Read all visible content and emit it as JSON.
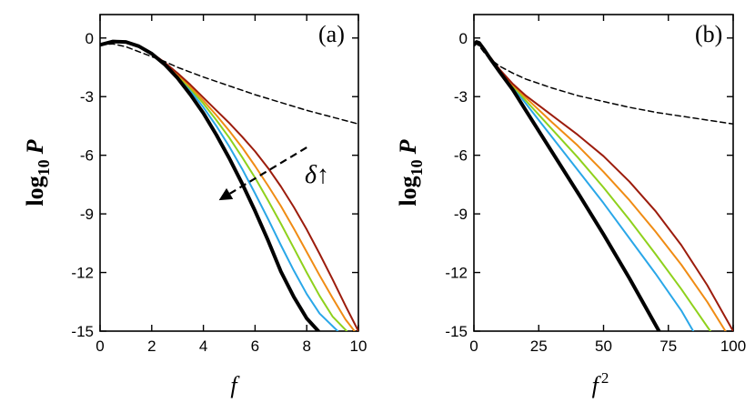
{
  "chart_data": [
    {
      "type": "line",
      "panel_label": "(a)",
      "ylabel_main": "log",
      "ylabel_sub": "10",
      "ylabel_var": "P",
      "xlabel": "f",
      "xlabel_sup": "",
      "xlim": [
        0,
        10
      ],
      "ylim": [
        -15,
        1.2
      ],
      "xticks": [
        0,
        2,
        4,
        6,
        8,
        10
      ],
      "xtick_labels": [
        "0",
        "2",
        "4",
        "6",
        "8",
        "10"
      ],
      "yticks": [
        0,
        -3,
        -6,
        -9,
        -12,
        -15
      ],
      "ytick_labels": [
        "0",
        "-3",
        "-6",
        "-9",
        "-12",
        "-15"
      ],
      "annotation": {
        "text": "δ↑",
        "arrow_from": [
          8.0,
          -5.6
        ],
        "arrow_to": [
          4.6,
          -8.3
        ]
      },
      "series": [
        {
          "color": "#000000",
          "width": 4,
          "dashed": false,
          "x": [
            0,
            0.5,
            1,
            1.5,
            2,
            2.5,
            3,
            3.5,
            4,
            4.5,
            5,
            5.5,
            6,
            6.5,
            7,
            7.5,
            8,
            8.45
          ],
          "y": [
            -0.35,
            -0.18,
            -0.2,
            -0.42,
            -0.8,
            -1.35,
            -2.05,
            -2.9,
            -3.85,
            -4.95,
            -6.15,
            -7.45,
            -8.85,
            -10.35,
            -11.95,
            -13.25,
            -14.35,
            -15.0
          ]
        },
        {
          "color": "#2aa7e8",
          "width": 2,
          "dashed": false,
          "x": [
            0,
            0.5,
            1,
            1.5,
            2,
            2.5,
            3,
            3.5,
            4,
            4.5,
            5,
            5.5,
            6,
            6.5,
            7,
            7.5,
            8,
            8.5,
            9.2
          ],
          "y": [
            -0.35,
            -0.18,
            -0.2,
            -0.42,
            -0.78,
            -1.3,
            -1.95,
            -2.7,
            -3.55,
            -4.5,
            -5.55,
            -6.7,
            -7.95,
            -9.25,
            -10.6,
            -11.9,
            -13.1,
            -14.1,
            -15.0
          ]
        },
        {
          "color": "#8fd11c",
          "width": 2,
          "dashed": false,
          "x": [
            0,
            0.5,
            1,
            1.5,
            2,
            2.5,
            3,
            3.5,
            4,
            4.5,
            5,
            5.5,
            6,
            6.5,
            7,
            7.5,
            8,
            8.5,
            9,
            9.55
          ],
          "y": [
            -0.35,
            -0.18,
            -0.2,
            -0.42,
            -0.78,
            -1.28,
            -1.9,
            -2.6,
            -3.35,
            -4.2,
            -5.1,
            -6.1,
            -7.15,
            -8.3,
            -9.5,
            -10.75,
            -12.0,
            -13.2,
            -14.25,
            -15.0
          ]
        },
        {
          "color": "#f08c14",
          "width": 2,
          "dashed": false,
          "x": [
            0,
            0.5,
            1,
            1.5,
            2,
            2.5,
            3,
            3.5,
            4,
            4.5,
            5,
            5.5,
            6,
            6.5,
            7,
            7.5,
            8,
            8.5,
            9,
            9.5,
            9.85
          ],
          "y": [
            -0.35,
            -0.18,
            -0.2,
            -0.42,
            -0.78,
            -1.27,
            -1.85,
            -2.5,
            -3.2,
            -3.95,
            -4.75,
            -5.6,
            -6.55,
            -7.55,
            -8.6,
            -9.75,
            -10.95,
            -12.15,
            -13.3,
            -14.4,
            -15.0
          ]
        },
        {
          "color": "#9c1c0c",
          "width": 2,
          "dashed": false,
          "x": [
            0,
            0.5,
            1,
            1.5,
            2,
            2.5,
            3,
            3.5,
            4,
            4.5,
            5,
            5.5,
            6,
            6.5,
            7,
            7.5,
            8,
            8.5,
            9,
            9.5,
            10
          ],
          "y": [
            -0.35,
            -0.18,
            -0.2,
            -0.42,
            -0.78,
            -1.25,
            -1.8,
            -2.4,
            -3.05,
            -3.7,
            -4.35,
            -5.05,
            -5.8,
            -6.65,
            -7.6,
            -8.65,
            -9.8,
            -11.05,
            -12.35,
            -13.7,
            -15.0
          ]
        },
        {
          "color": "#000000",
          "width": 1.5,
          "dashed": true,
          "x": [
            0,
            0.5,
            1,
            1.5,
            2,
            2.5,
            3,
            4,
            5,
            6,
            7,
            8,
            9,
            10
          ],
          "y": [
            -0.35,
            -0.3,
            -0.45,
            -0.7,
            -0.95,
            -1.2,
            -1.5,
            -2.0,
            -2.45,
            -2.9,
            -3.3,
            -3.7,
            -4.05,
            -4.4
          ]
        }
      ]
    },
    {
      "type": "line",
      "panel_label": "(b)",
      "ylabel_main": "log",
      "ylabel_sub": "10",
      "ylabel_var": "P",
      "xlabel": "f",
      "xlabel_sup": "2",
      "xlim": [
        0,
        100
      ],
      "ylim": [
        -15,
        1.2
      ],
      "xticks": [
        0,
        25,
        50,
        75,
        100
      ],
      "xtick_labels": [
        "0",
        "25",
        "50",
        "75",
        "100"
      ],
      "yticks": [
        0,
        -3,
        -6,
        -9,
        -12,
        -15
      ],
      "ytick_labels": [
        "0",
        "-3",
        "-6",
        "-9",
        "-12",
        "-15"
      ],
      "series": [
        {
          "color": "#000000",
          "width": 4,
          "dashed": false,
          "x": [
            0,
            1,
            2,
            4,
            6,
            10,
            15,
            20,
            30,
            40,
            50,
            60,
            71.4
          ],
          "y": [
            -0.35,
            -0.2,
            -0.25,
            -0.6,
            -1.0,
            -1.75,
            -2.65,
            -3.7,
            -5.8,
            -7.9,
            -10.05,
            -12.3,
            -15.0
          ]
        },
        {
          "color": "#2aa7e8",
          "width": 2,
          "dashed": false,
          "x": [
            0,
            1,
            2,
            4,
            6,
            10,
            15,
            20,
            30,
            40,
            50,
            60,
            70,
            80,
            84.6
          ],
          "y": [
            -0.35,
            -0.2,
            -0.25,
            -0.58,
            -0.95,
            -1.7,
            -2.5,
            -3.35,
            -5.05,
            -6.75,
            -8.45,
            -10.25,
            -12.05,
            -13.95,
            -15.0
          ]
        },
        {
          "color": "#8fd11c",
          "width": 2,
          "dashed": false,
          "x": [
            0,
            1,
            2,
            4,
            6,
            10,
            15,
            20,
            30,
            40,
            50,
            60,
            70,
            80,
            91.2
          ],
          "y": [
            -0.35,
            -0.2,
            -0.25,
            -0.58,
            -0.95,
            -1.68,
            -2.45,
            -3.2,
            -4.65,
            -6.1,
            -7.65,
            -9.3,
            -11.05,
            -12.85,
            -15.0
          ]
        },
        {
          "color": "#f08c14",
          "width": 2,
          "dashed": false,
          "x": [
            0,
            1,
            2,
            4,
            6,
            10,
            15,
            20,
            30,
            40,
            50,
            60,
            70,
            80,
            90,
            97
          ],
          "y": [
            -0.35,
            -0.2,
            -0.25,
            -0.58,
            -0.93,
            -1.65,
            -2.4,
            -3.05,
            -4.3,
            -5.5,
            -6.85,
            -8.3,
            -9.9,
            -11.6,
            -13.5,
            -15.0
          ]
        },
        {
          "color": "#9c1c0c",
          "width": 2,
          "dashed": false,
          "x": [
            0,
            1,
            2,
            4,
            6,
            10,
            15,
            20,
            30,
            40,
            50,
            60,
            70,
            80,
            90,
            100
          ],
          "y": [
            -0.35,
            -0.2,
            -0.25,
            -0.58,
            -0.93,
            -1.62,
            -2.35,
            -2.95,
            -3.95,
            -4.95,
            -6.05,
            -7.35,
            -8.85,
            -10.6,
            -12.65,
            -15.0
          ]
        },
        {
          "color": "#000000",
          "width": 1.5,
          "dashed": true,
          "x": [
            0,
            1,
            2,
            4,
            6,
            10,
            15,
            20,
            30,
            40,
            50,
            60,
            70,
            80,
            90,
            100
          ],
          "y": [
            -0.35,
            -0.3,
            -0.4,
            -0.75,
            -1.05,
            -1.45,
            -1.8,
            -2.1,
            -2.55,
            -2.95,
            -3.25,
            -3.55,
            -3.8,
            -4.0,
            -4.2,
            -4.4
          ]
        }
      ]
    }
  ]
}
